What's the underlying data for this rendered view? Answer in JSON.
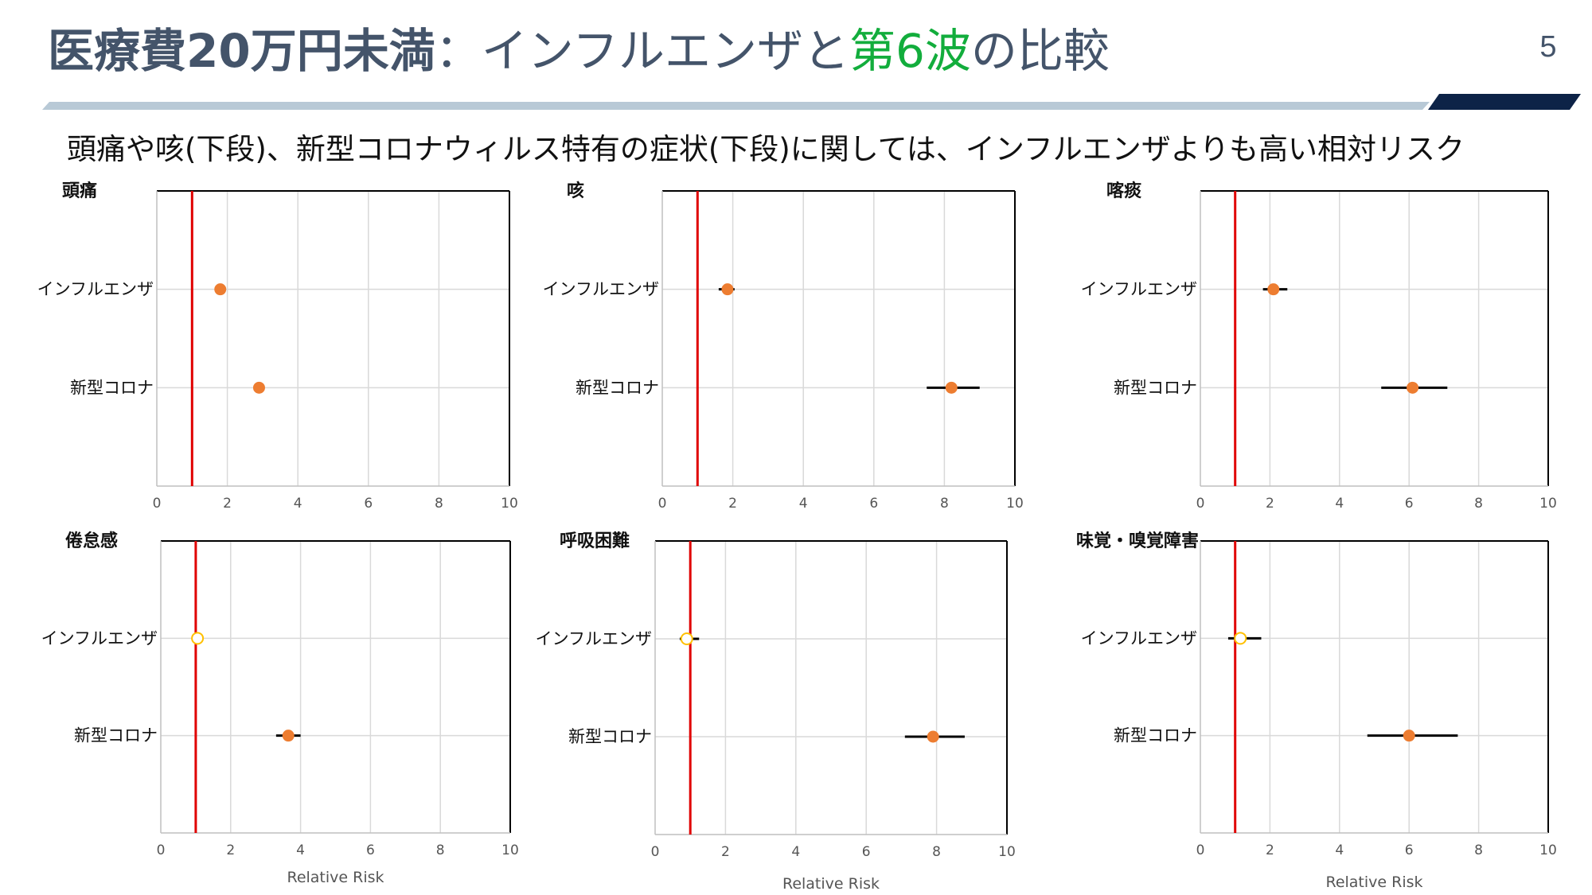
{
  "header": {
    "title_bold": "医療費20万円未満",
    "title_sep": "：インフルエンザと",
    "title_green": "第6波",
    "title_tail": "の比較",
    "page_number": "5",
    "subtitle": "頭痛や咳(下段)、新型コロナウィルス特有の症状(下段)に関しては、インフルエンザよりも高い相対リスク"
  },
  "colors": {
    "title": "#44546a",
    "accent_green": "#12ad3c",
    "rule_light": "#b8c9d6",
    "rule_dark": "#0d2347",
    "reference_line": "#e00000",
    "marker": "#ed7d31",
    "marker_ns_edge": "#ffc000",
    "grid": "#d9d9d9"
  },
  "chart_data": [
    {
      "type": "scatter",
      "title": "頭痛",
      "categories": [
        "インフルエンザ",
        "新型コロナ"
      ],
      "xlim": [
        0,
        10
      ],
      "xticks": [
        "0",
        "2",
        "4",
        "6",
        "8",
        "10"
      ],
      "xlabel": "",
      "reference_x": 1,
      "grid": true,
      "points": [
        {
          "category": "インフルエンザ",
          "value": 1.8,
          "ci": [
            1.8,
            1.8
          ],
          "significant": true
        },
        {
          "category": "新型コロナ",
          "value": 2.9,
          "ci": [
            2.9,
            2.9
          ],
          "significant": true
        }
      ]
    },
    {
      "type": "scatter",
      "title": "咳",
      "categories": [
        "インフルエンザ",
        "新型コロナ"
      ],
      "xlim": [
        0,
        10
      ],
      "xticks": [
        "0",
        "2",
        "4",
        "6",
        "8",
        "10"
      ],
      "xlabel": "",
      "reference_x": 1,
      "grid": true,
      "points": [
        {
          "category": "インフルエンザ",
          "value": 1.85,
          "ci": [
            1.6,
            2.05
          ],
          "significant": true
        },
        {
          "category": "新型コロナ",
          "value": 8.2,
          "ci": [
            7.5,
            9.0
          ],
          "significant": true
        }
      ]
    },
    {
      "type": "scatter",
      "title": "喀痰",
      "categories": [
        "インフルエンザ",
        "新型コロナ"
      ],
      "xlim": [
        0,
        10
      ],
      "xticks": [
        "0",
        "2",
        "4",
        "6",
        "8",
        "10"
      ],
      "xlabel": "",
      "reference_x": 1,
      "grid": true,
      "points": [
        {
          "category": "インフルエンザ",
          "value": 2.1,
          "ci": [
            1.8,
            2.5
          ],
          "significant": true
        },
        {
          "category": "新型コロナ",
          "value": 6.1,
          "ci": [
            5.2,
            7.1
          ],
          "significant": true
        }
      ]
    },
    {
      "type": "scatter",
      "title": "倦怠感",
      "categories": [
        "インフルエンザ",
        "新型コロナ"
      ],
      "xlim": [
        0,
        10
      ],
      "xticks": [
        "0",
        "2",
        "4",
        "6",
        "8",
        "10"
      ],
      "xlabel": "Relative Risk",
      "reference_x": 1,
      "grid": true,
      "points": [
        {
          "category": "インフルエンザ",
          "value": 1.05,
          "ci": [
            0.95,
            1.2
          ],
          "significant": false
        },
        {
          "category": "新型コロナ",
          "value": 3.65,
          "ci": [
            3.3,
            4.0
          ],
          "significant": true
        }
      ]
    },
    {
      "type": "scatter",
      "title": "呼吸困難",
      "categories": [
        "インフルエンザ",
        "新型コロナ"
      ],
      "xlim": [
        0,
        10
      ],
      "xticks": [
        "0",
        "2",
        "4",
        "6",
        "8",
        "10"
      ],
      "xlabel": "Relative Risk",
      "reference_x": 1,
      "grid": true,
      "points": [
        {
          "category": "インフルエンザ",
          "value": 0.9,
          "ci": [
            0.7,
            1.25
          ],
          "significant": false
        },
        {
          "category": "新型コロナ",
          "value": 7.9,
          "ci": [
            7.1,
            8.8
          ],
          "significant": true
        }
      ]
    },
    {
      "type": "scatter",
      "title": "味覚・嗅覚障害",
      "categories": [
        "インフルエンザ",
        "新型コロナ"
      ],
      "xlim": [
        0,
        10
      ],
      "xticks": [
        "0",
        "2",
        "4",
        "6",
        "8",
        "10"
      ],
      "xlabel": "Relative Risk",
      "reference_x": 1,
      "grid": true,
      "points": [
        {
          "category": "インフルエンザ",
          "value": 1.15,
          "ci": [
            0.8,
            1.75
          ],
          "significant": false
        },
        {
          "category": "新型コロナ",
          "value": 6.0,
          "ci": [
            4.8,
            7.4
          ],
          "significant": true
        }
      ]
    }
  ]
}
